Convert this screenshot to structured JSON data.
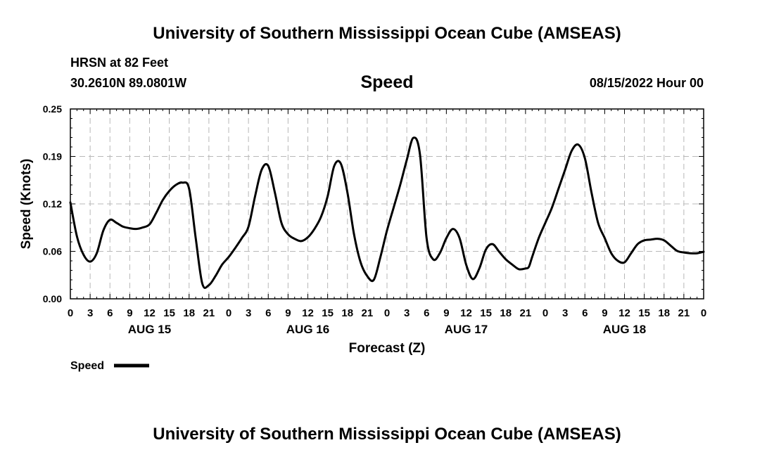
{
  "header": {
    "title": "University of Southern Mississippi Ocean Cube (AMSEAS)",
    "station": "HRSN at 82 Feet",
    "coords": "30.2610N  89.0801W",
    "variable": "Speed",
    "datetime": "08/15/2022 Hour 00"
  },
  "footer": {
    "title": "University of Southern Mississippi Ocean Cube (AMSEAS)"
  },
  "legend": {
    "label": "Speed"
  },
  "chart_data": {
    "type": "line",
    "title": "Speed",
    "xlabel": "Forecast (Z)",
    "ylabel": "Speed (Knots)",
    "xlim": [
      0,
      96
    ],
    "ylim": [
      0,
      0.25
    ],
    "grid": true,
    "legend_position": "bottom-left",
    "x_tick_labels": [
      "0",
      "3",
      "6",
      "9",
      "12",
      "15",
      "18",
      "21",
      "0",
      "3",
      "6",
      "9",
      "12",
      "15",
      "18",
      "21",
      "0",
      "3",
      "6",
      "9",
      "12",
      "15",
      "18",
      "21",
      "0",
      "3",
      "6",
      "9",
      "12",
      "15",
      "18",
      "21",
      "0"
    ],
    "y_tick_labels": [
      "0.00",
      "0.06",
      "0.12",
      "0.19",
      "0.25"
    ],
    "y_tick_values": [
      0,
      0.0625,
      0.125,
      0.1875,
      0.25
    ],
    "day_labels": [
      {
        "label": "AUG 15",
        "x": 12
      },
      {
        "label": "AUG 16",
        "x": 36
      },
      {
        "label": "AUG 17",
        "x": 60
      },
      {
        "label": "AUG 18",
        "x": 84
      }
    ],
    "series": [
      {
        "name": "Speed",
        "x": [
          0,
          1,
          2,
          3,
          4,
          5,
          6,
          7,
          8,
          9,
          10,
          11,
          12,
          13,
          14,
          15,
          16,
          17,
          18,
          19,
          20,
          21,
          22,
          23,
          24,
          25,
          26,
          27,
          28,
          29,
          30,
          31,
          32,
          33,
          34,
          35,
          36,
          37,
          38,
          39,
          40,
          41,
          42,
          43,
          44,
          45,
          46,
          47,
          48,
          49,
          50,
          51,
          52,
          53,
          54,
          55,
          56,
          57,
          58,
          59,
          60,
          61,
          62,
          63,
          64,
          65,
          66,
          67,
          68,
          69,
          69.5,
          70,
          71,
          72,
          73,
          74,
          75,
          76,
          77,
          78,
          79,
          80,
          81,
          82,
          83,
          84,
          85,
          86,
          87,
          88,
          89,
          90,
          91,
          92,
          93,
          94,
          95,
          96
        ],
        "values": [
          0.127,
          0.082,
          0.058,
          0.049,
          0.06,
          0.09,
          0.104,
          0.1,
          0.095,
          0.093,
          0.092,
          0.094,
          0.098,
          0.113,
          0.13,
          0.142,
          0.15,
          0.153,
          0.145,
          0.08,
          0.02,
          0.018,
          0.03,
          0.045,
          0.055,
          0.067,
          0.08,
          0.095,
          0.135,
          0.17,
          0.175,
          0.14,
          0.1,
          0.085,
          0.079,
          0.076,
          0.081,
          0.092,
          0.108,
          0.135,
          0.175,
          0.178,
          0.14,
          0.085,
          0.048,
          0.03,
          0.025,
          0.055,
          0.09,
          0.12,
          0.15,
          0.183,
          0.212,
          0.19,
          0.08,
          0.052,
          0.06,
          0.08,
          0.092,
          0.08,
          0.045,
          0.026,
          0.04,
          0.065,
          0.072,
          0.062,
          0.052,
          0.045,
          0.039,
          0.04,
          0.042,
          0.055,
          0.08,
          0.1,
          0.12,
          0.145,
          0.17,
          0.195,
          0.203,
          0.185,
          0.14,
          0.1,
          0.08,
          0.06,
          0.05,
          0.048,
          0.06,
          0.072,
          0.077,
          0.078,
          0.079,
          0.077,
          0.07,
          0.063,
          0.061,
          0.06,
          0.06,
          0.062
        ]
      }
    ]
  }
}
